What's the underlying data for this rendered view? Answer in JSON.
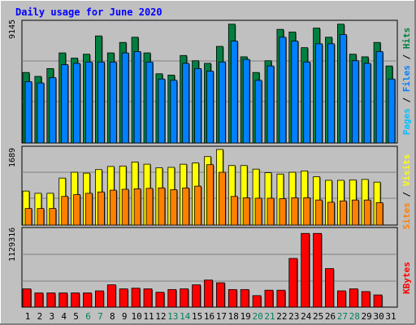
{
  "title": "Daily usage for June 2020",
  "colors": {
    "background": "#C0C0C0",
    "title": "#0000FF",
    "hits": "#008040",
    "files": "#0080FF",
    "pages": "#00C0FF",
    "visits": "#FFFF00",
    "sites": "#FF8000",
    "kbytes": "#FF0000",
    "weekend_day": "#00805C",
    "weekday": "#000000"
  },
  "chart_data": [
    {
      "type": "bar",
      "title": "Daily usage for June 2020",
      "panel": "hits-files-pages",
      "axis_max_label": "9145",
      "ylim": [
        0,
        9145
      ],
      "legend": [
        "Pages",
        "Files",
        "Hits"
      ],
      "legend_placement": "right",
      "categories": [
        "1",
        "2",
        "3",
        "4",
        "5",
        "6",
        "7",
        "8",
        "9",
        "10",
        "11",
        "12",
        "13",
        "14",
        "15",
        "16",
        "17",
        "18",
        "19",
        "20",
        "21",
        "22",
        "23",
        "24",
        "25",
        "26",
        "27",
        "28",
        "29",
        "30",
        "31"
      ],
      "series": [
        {
          "name": "Hits",
          "values": [
            5400,
            5100,
            5700,
            6900,
            6500,
            6800,
            8200,
            6900,
            7700,
            8100,
            6900,
            5300,
            5200,
            6700,
            6300,
            6100,
            7400,
            9100,
            6600,
            5400,
            6300,
            8700,
            8500,
            7300,
            8800,
            8100,
            9100,
            6800,
            6600,
            7700,
            5900
          ]
        },
        {
          "name": "Files",
          "values": [
            4700,
            4600,
            5000,
            6000,
            6100,
            6200,
            6200,
            6200,
            6900,
            7000,
            6200,
            4900,
            4800,
            6100,
            5700,
            5500,
            6200,
            7800,
            6400,
            4800,
            5900,
            8100,
            7800,
            6200,
            7600,
            7600,
            8300,
            6300,
            6100,
            7000,
            4900
          ]
        },
        {
          "name": "Pages",
          "values": [
            0,
            0,
            0,
            0,
            0,
            0,
            0,
            0,
            0,
            0,
            0,
            0,
            0,
            0,
            0,
            0,
            0,
            0,
            0,
            0,
            0,
            0,
            0,
            0,
            0,
            0,
            0,
            0,
            0,
            0,
            0
          ]
        }
      ]
    },
    {
      "type": "bar",
      "panel": "visits-sites",
      "axis_max_label": "1689",
      "ylim": [
        0,
        1689
      ],
      "legend": [
        "Sites",
        "Visits"
      ],
      "legend_placement": "right",
      "categories": [
        "1",
        "2",
        "3",
        "4",
        "5",
        "6",
        "7",
        "8",
        "9",
        "10",
        "11",
        "12",
        "13",
        "14",
        "15",
        "16",
        "17",
        "18",
        "19",
        "20",
        "21",
        "22",
        "23",
        "24",
        "25",
        "26",
        "27",
        "28",
        "29",
        "30",
        "31"
      ],
      "series": [
        {
          "name": "Visits",
          "values": [
            760,
            710,
            710,
            1050,
            1180,
            1160,
            1240,
            1310,
            1320,
            1410,
            1360,
            1280,
            1290,
            1360,
            1390,
            1530,
            1690,
            1330,
            1330,
            1250,
            1170,
            1140,
            1180,
            1210,
            1080,
            1000,
            1000,
            1010,
            1020,
            960,
            0
          ]
        },
        {
          "name": "Sites",
          "values": [
            370,
            370,
            370,
            640,
            680,
            710,
            740,
            780,
            800,
            810,
            820,
            830,
            790,
            830,
            870,
            1350,
            1180,
            640,
            610,
            600,
            600,
            590,
            610,
            610,
            560,
            510,
            540,
            560,
            560,
            500,
            0
          ]
        }
      ]
    },
    {
      "type": "bar",
      "panel": "kbytes",
      "axis_max_label": "1129316",
      "ylim": [
        0,
        1129316
      ],
      "legend": [
        "KBytes"
      ],
      "legend_placement": "right",
      "categories": [
        "1",
        "2",
        "3",
        "4",
        "5",
        "6",
        "7",
        "8",
        "9",
        "10",
        "11",
        "12",
        "13",
        "14",
        "15",
        "16",
        "17",
        "18",
        "19",
        "20",
        "21",
        "22",
        "23",
        "24",
        "25",
        "26",
        "27",
        "28",
        "29",
        "30",
        "31"
      ],
      "series": [
        {
          "name": "KBytes",
          "values": [
            270000,
            210000,
            210000,
            210000,
            210000,
            210000,
            240000,
            330000,
            270000,
            280000,
            270000,
            220000,
            260000,
            270000,
            330000,
            400000,
            360000,
            260000,
            260000,
            170000,
            250000,
            250000,
            720000,
            1090000,
            1090000,
            570000,
            240000,
            270000,
            230000,
            180000,
            0
          ]
        }
      ]
    }
  ],
  "x_labels": [
    {
      "label": "1",
      "weekend": false
    },
    {
      "label": "2",
      "weekend": false
    },
    {
      "label": "3",
      "weekend": false
    },
    {
      "label": "4",
      "weekend": false
    },
    {
      "label": "5",
      "weekend": false
    },
    {
      "label": "6",
      "weekend": true
    },
    {
      "label": "7",
      "weekend": true
    },
    {
      "label": "8",
      "weekend": false
    },
    {
      "label": "9",
      "weekend": false
    },
    {
      "label": "10",
      "weekend": false
    },
    {
      "label": "11",
      "weekend": false
    },
    {
      "label": "12",
      "weekend": false
    },
    {
      "label": "13",
      "weekend": true
    },
    {
      "label": "14",
      "weekend": true
    },
    {
      "label": "15",
      "weekend": false
    },
    {
      "label": "16",
      "weekend": false
    },
    {
      "label": "17",
      "weekend": false
    },
    {
      "label": "18",
      "weekend": false
    },
    {
      "label": "19",
      "weekend": false
    },
    {
      "label": "20",
      "weekend": true
    },
    {
      "label": "21",
      "weekend": true
    },
    {
      "label": "22",
      "weekend": false
    },
    {
      "label": "23",
      "weekend": false
    },
    {
      "label": "24",
      "weekend": false
    },
    {
      "label": "25",
      "weekend": false
    },
    {
      "label": "26",
      "weekend": false
    },
    {
      "label": "27",
      "weekend": true
    },
    {
      "label": "28",
      "weekend": true
    },
    {
      "label": "29",
      "weekend": false
    },
    {
      "label": "30",
      "weekend": false
    },
    {
      "label": "31",
      "weekend": false
    }
  ]
}
